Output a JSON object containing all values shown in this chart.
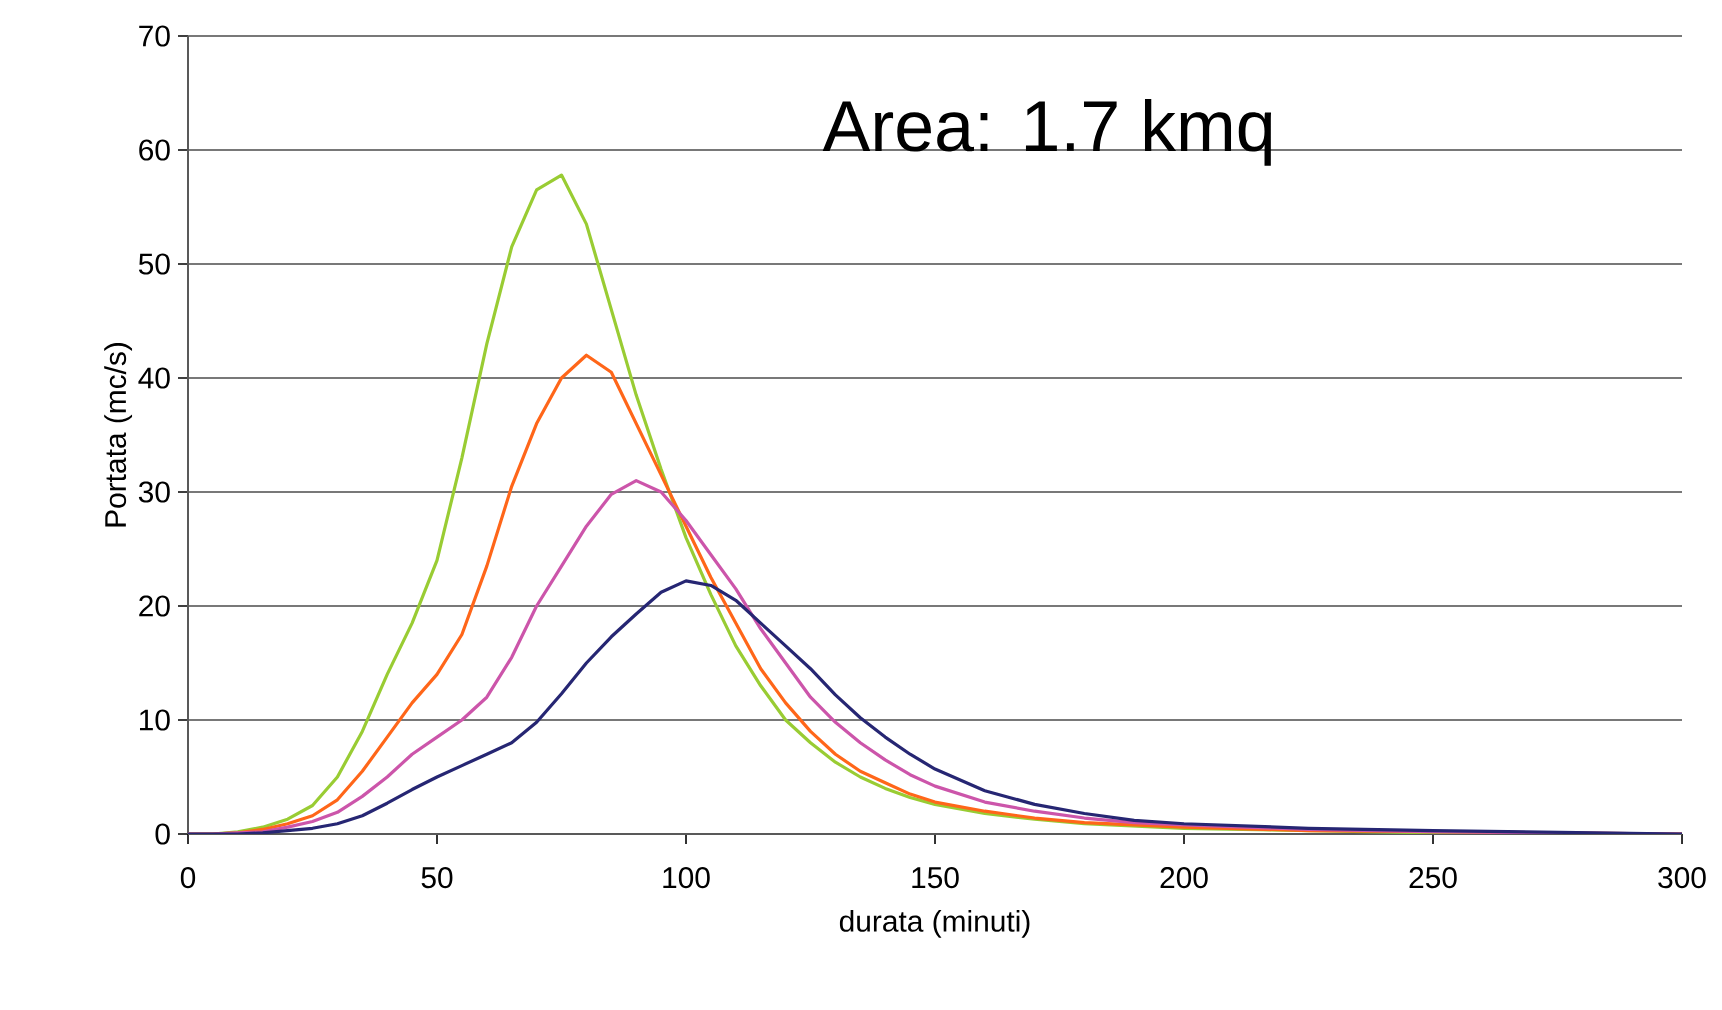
{
  "chart_data": {
    "type": "line",
    "xlabel": "durata (minuti)",
    "ylabel": "Portata (mc/s)",
    "annotations": [
      "Area: 1.7 kmq"
    ],
    "xlim": [
      0,
      300
    ],
    "ylim": [
      0,
      70
    ],
    "xticks": [
      0,
      50,
      100,
      150,
      200,
      250,
      300
    ],
    "yticks": [
      0,
      10,
      20,
      30,
      40,
      50,
      60,
      70
    ],
    "grid": "y",
    "marker": "none",
    "line_style": "solid",
    "series": [
      {
        "color": "#99cc33",
        "x": [
          0,
          5,
          10,
          15,
          20,
          25,
          30,
          35,
          40,
          45,
          50,
          55,
          60,
          65,
          70,
          75,
          80,
          85,
          90,
          95,
          100,
          105,
          110,
          115,
          120,
          125,
          130,
          135,
          140,
          145,
          150,
          160,
          170,
          180,
          200,
          225,
          250,
          300
        ],
        "values": [
          0,
          0,
          0.2,
          0.6,
          1.3,
          2.5,
          5,
          9,
          14,
          18.5,
          24,
          33,
          43,
          51.5,
          56.5,
          57.8,
          53.5,
          46,
          38.5,
          32,
          26,
          21,
          16.5,
          13,
          10,
          8,
          6.3,
          5,
          4,
          3.2,
          2.6,
          1.8,
          1.3,
          0.9,
          0.5,
          0.3,
          0.1,
          0
        ]
      },
      {
        "color": "#ff6619",
        "x": [
          0,
          5,
          10,
          15,
          20,
          25,
          30,
          35,
          40,
          45,
          50,
          55,
          60,
          65,
          70,
          75,
          80,
          85,
          90,
          95,
          100,
          105,
          110,
          115,
          120,
          125,
          130,
          135,
          140,
          145,
          150,
          160,
          170,
          180,
          200,
          225,
          250,
          300
        ],
        "values": [
          0,
          0,
          0.1,
          0.4,
          0.9,
          1.6,
          3,
          5.5,
          8.5,
          11.5,
          14,
          17.5,
          23.5,
          30.5,
          36,
          40,
          42,
          40.5,
          36,
          31.5,
          27,
          22.5,
          18.5,
          14.5,
          11.5,
          9,
          7,
          5.5,
          4.5,
          3.5,
          2.8,
          2,
          1.4,
          1,
          0.6,
          0.3,
          0.2,
          0
        ]
      },
      {
        "color": "#cc55aa",
        "x": [
          0,
          5,
          10,
          15,
          20,
          25,
          30,
          35,
          40,
          45,
          50,
          55,
          60,
          65,
          70,
          75,
          80,
          85,
          90,
          95,
          100,
          105,
          110,
          115,
          120,
          125,
          130,
          135,
          140,
          145,
          150,
          160,
          170,
          180,
          190,
          200,
          225,
          250,
          300
        ],
        "values": [
          0,
          0,
          0.1,
          0.2,
          0.6,
          1.1,
          1.9,
          3.3,
          5,
          7,
          8.5,
          10,
          12,
          15.5,
          20,
          23.5,
          27,
          29.8,
          31,
          30,
          27.5,
          24.5,
          21.5,
          18,
          15,
          12,
          9.8,
          8,
          6.5,
          5.2,
          4.2,
          2.8,
          2,
          1.4,
          1,
          0.8,
          0.4,
          0.2,
          0
        ]
      },
      {
        "color": "#262673",
        "x": [
          0,
          5,
          10,
          15,
          20,
          25,
          30,
          35,
          40,
          45,
          50,
          55,
          60,
          65,
          70,
          75,
          80,
          85,
          90,
          95,
          100,
          105,
          110,
          115,
          120,
          125,
          130,
          135,
          140,
          145,
          150,
          160,
          170,
          180,
          190,
          200,
          225,
          250,
          300
        ],
        "values": [
          0,
          0,
          0,
          0.1,
          0.3,
          0.5,
          0.9,
          1.6,
          2.7,
          3.9,
          5,
          6,
          7,
          8,
          9.8,
          12.3,
          15,
          17.3,
          19.3,
          21.2,
          22.2,
          21.8,
          20.5,
          18.5,
          16.5,
          14.5,
          12.2,
          10.2,
          8.5,
          7,
          5.7,
          3.8,
          2.6,
          1.8,
          1.2,
          0.9,
          0.5,
          0.3,
          0
        ]
      }
    ]
  }
}
